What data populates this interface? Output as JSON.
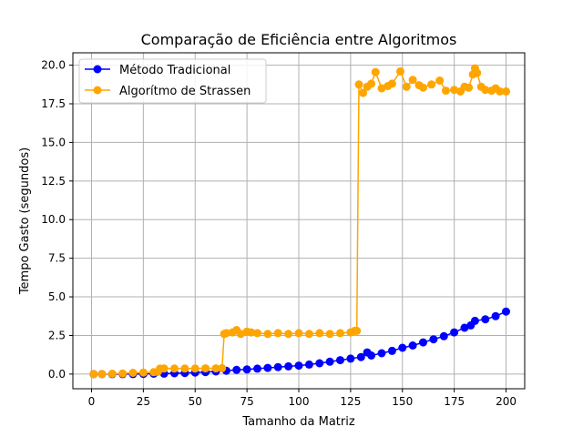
{
  "chart_data": {
    "type": "line",
    "title": "Comparação de Eficiência entre Algoritmos",
    "xlabel": "Tamanho da Matriz",
    "ylabel": "Tempo Gasto (segundos)",
    "xlim": [
      -9,
      209
    ],
    "ylim": [
      -0.95,
      20.8
    ],
    "xticks": [
      0,
      25,
      50,
      75,
      100,
      125,
      150,
      175,
      200
    ],
    "xtick_labels": [
      "0",
      "25",
      "50",
      "75",
      "100",
      "125",
      "150",
      "175",
      "200"
    ],
    "yticks": [
      0,
      2.5,
      5,
      7.5,
      10,
      12.5,
      15,
      17.5,
      20
    ],
    "ytick_labels": [
      "0.0",
      "2.5",
      "5.0",
      "7.5",
      "10.0",
      "12.5",
      "15.0",
      "17.5",
      "20.0"
    ],
    "grid": true,
    "legend_position": "top-left",
    "series": [
      {
        "name": "Método Tradicional",
        "color": "#0000ff",
        "marker": "circle",
        "x": [
          1,
          5,
          10,
          15,
          20,
          25,
          30,
          35,
          40,
          45,
          50,
          55,
          60,
          65,
          70,
          75,
          80,
          85,
          90,
          95,
          100,
          105,
          110,
          115,
          120,
          125,
          130,
          133,
          135,
          140,
          145,
          150,
          155,
          160,
          165,
          170,
          175,
          180,
          183,
          185,
          190,
          195,
          200
        ],
        "y": [
          0.0,
          0.0,
          0.0,
          0.0,
          0.0,
          0.01,
          0.02,
          0.03,
          0.05,
          0.07,
          0.1,
          0.13,
          0.17,
          0.22,
          0.27,
          0.3,
          0.35,
          0.4,
          0.45,
          0.5,
          0.55,
          0.62,
          0.7,
          0.8,
          0.9,
          1.0,
          1.1,
          1.4,
          1.2,
          1.35,
          1.5,
          1.7,
          1.85,
          2.05,
          2.25,
          2.45,
          2.7,
          3.0,
          3.15,
          3.45,
          3.55,
          3.75,
          4.05
        ]
      },
      {
        "name": "Algorítmo de Strassen",
        "color": "#ffa500",
        "marker": "circle",
        "x": [
          1,
          5,
          10,
          15,
          20,
          25,
          30,
          32,
          33,
          35,
          40,
          45,
          50,
          55,
          60,
          63,
          64,
          65,
          68,
          70,
          72,
          75,
          77,
          80,
          85,
          90,
          95,
          100,
          105,
          110,
          115,
          120,
          125,
          127,
          128,
          129,
          131,
          133,
          135,
          137,
          140,
          143,
          145,
          149,
          152,
          155,
          158,
          160,
          164,
          168,
          171,
          175,
          178,
          180,
          182,
          184,
          185,
          186,
          188,
          190,
          193,
          195,
          197,
          200
        ],
        "y": [
          0.0,
          0.0,
          0.02,
          0.04,
          0.08,
          0.1,
          0.12,
          0.14,
          0.35,
          0.36,
          0.36,
          0.36,
          0.36,
          0.37,
          0.37,
          0.38,
          2.6,
          2.65,
          2.7,
          2.85,
          2.6,
          2.75,
          2.7,
          2.65,
          2.6,
          2.65,
          2.6,
          2.65,
          2.6,
          2.65,
          2.6,
          2.65,
          2.7,
          2.8,
          2.8,
          18.75,
          18.2,
          18.6,
          18.8,
          19.55,
          18.5,
          18.65,
          18.8,
          19.6,
          18.6,
          19.05,
          18.7,
          18.55,
          18.75,
          19.0,
          18.35,
          18.4,
          18.3,
          18.6,
          18.55,
          19.4,
          19.8,
          19.5,
          18.6,
          18.4,
          18.35,
          18.5,
          18.3,
          18.3
        ]
      }
    ]
  }
}
